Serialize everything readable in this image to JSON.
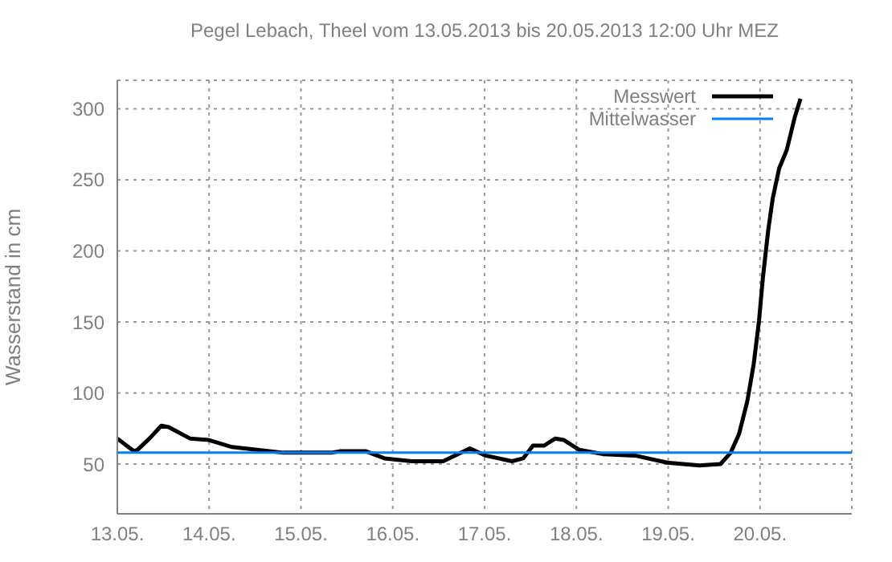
{
  "chart_data": {
    "type": "line",
    "title": "Pegel Lebach, Theel vom 13.05.2013 bis 20.05.2013 12:00 Uhr MEZ",
    "ylabel": "Wasserstand in cm",
    "xlim": [
      "2013-05-13T00:00",
      "2013-05-21T00:00"
    ],
    "xticks": [
      {
        "value": "2013-05-13",
        "label": "13.05."
      },
      {
        "value": "2013-05-14",
        "label": "14.05."
      },
      {
        "value": "2013-05-15",
        "label": "15.05."
      },
      {
        "value": "2013-05-16",
        "label": "16.05."
      },
      {
        "value": "2013-05-17",
        "label": "17.05."
      },
      {
        "value": "2013-05-18",
        "label": "18.05."
      },
      {
        "value": "2013-05-19",
        "label": "19.05."
      },
      {
        "value": "2013-05-20",
        "label": "20.05."
      }
    ],
    "ylim": [
      15,
      320
    ],
    "yticks": [
      50,
      100,
      150,
      200,
      250,
      300
    ],
    "grid": true,
    "legend": "top right",
    "line_style": "solid",
    "marker": "none",
    "series": [
      {
        "name": "Messwert",
        "color": "#000000",
        "x": [
          "2013-05-13T00:00",
          "2013-05-13T04:20",
          "2013-05-13T05:15",
          "2013-05-13T08:25",
          "2013-05-13T11:30",
          "2013-05-13T13:25",
          "2013-05-13T19:00",
          "2013-05-13T23:45",
          "2013-05-14T06:00",
          "2013-05-14T12:30",
          "2013-05-14T19:25",
          "2013-05-15T07:55",
          "2013-05-15T10:05",
          "2013-05-15T17:00",
          "2013-05-15T21:50",
          "2013-05-16T04:50",
          "2013-05-16T13:10",
          "2013-05-16T20:10",
          "2013-05-17T00:15",
          "2013-05-17T07:10",
          "2013-05-17T10:05",
          "2013-05-17T12:40",
          "2013-05-17T15:35",
          "2013-05-17T18:30",
          "2013-05-17T20:40",
          "2013-05-18T00:45",
          "2013-05-18T06:58",
          "2013-05-18T15:20",
          "2013-05-18T23:45",
          "2013-05-19T08:10",
          "2013-05-19T13:40",
          "2013-05-19T16:20",
          "2013-05-19T18:30",
          "2013-05-19T20:40",
          "2013-05-19T22:20",
          "2013-05-19T23:45",
          "2013-05-20T00:45",
          "2013-05-20T02:10",
          "2013-05-20T03:20",
          "2013-05-20T05:00",
          "2013-05-20T07:00",
          "2013-05-20T09:05",
          "2013-05-20T10:35"
        ],
        "values": [
          68,
          59,
          60,
          68,
          77,
          76,
          68,
          67,
          62,
          60,
          58,
          58,
          59,
          59,
          54,
          52,
          52,
          61,
          56,
          52,
          54,
          63,
          63,
          68,
          67,
          60,
          57,
          56,
          51,
          49,
          50,
          58,
          71,
          94,
          120,
          151,
          181,
          215,
          237,
          258,
          271,
          294,
          307
        ]
      },
      {
        "name": "Mittelwasser",
        "color": "#0080ff",
        "x": [
          "2013-05-13T00:00",
          "2013-05-21T00:00"
        ],
        "values": [
          58,
          58
        ]
      }
    ]
  }
}
